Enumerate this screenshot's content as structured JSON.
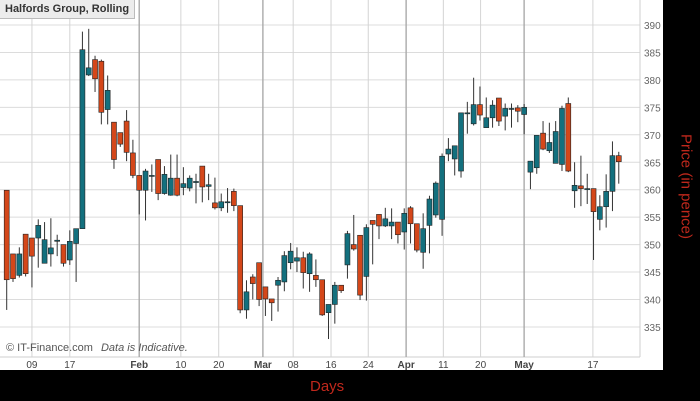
{
  "chart_data": {
    "type": "candlestick",
    "title": "Halfords Group, Rolling",
    "xlabel": "Days",
    "ylabel": "Price (in pence)",
    "watermark": "© IT-Finance.com",
    "note": "Data is Indicative.",
    "ylim": [
      330,
      393
    ],
    "yticks": [
      335,
      340,
      345,
      350,
      355,
      360,
      365,
      370,
      375,
      380,
      385,
      390
    ],
    "grid": true,
    "colors": {
      "up": "#13707e",
      "down": "#d4471a",
      "axis_title": "#c0281c"
    },
    "xticks": [
      {
        "label": "09",
        "index": 5,
        "bold": false
      },
      {
        "label": "17",
        "index": 11,
        "bold": false
      },
      {
        "label": "Feb",
        "index": 22,
        "bold": true
      },
      {
        "label": "10",
        "index": 28.6,
        "bold": false
      },
      {
        "label": "20",
        "index": 34.6,
        "bold": false
      },
      {
        "label": "Mar",
        "index": 41.6,
        "bold": true
      },
      {
        "label": "08",
        "index": 46.4,
        "bold": false
      },
      {
        "label": "16",
        "index": 52.4,
        "bold": false
      },
      {
        "label": "24",
        "index": 58.3,
        "bold": false
      },
      {
        "label": "Apr",
        "index": 64.3,
        "bold": true
      },
      {
        "label": "11",
        "index": 70.2,
        "bold": false
      },
      {
        "label": "20",
        "index": 76.1,
        "bold": false
      },
      {
        "label": "May",
        "index": 83,
        "bold": true
      },
      {
        "label": "17",
        "index": 93.9,
        "bold": false
      }
    ],
    "ohlc": [
      [
        359.9,
        359.9,
        338.1,
        343.6
      ],
      [
        348.3,
        348.3,
        343.2,
        343.8
      ],
      [
        344.4,
        349.5,
        344.0,
        348.3
      ],
      [
        351.9,
        351.9,
        344.2,
        344.7
      ],
      [
        351.2,
        351.2,
        342.2,
        347.9
      ],
      [
        351.2,
        354.6,
        345.8,
        353.5
      ],
      [
        346.6,
        354.1,
        346.6,
        350.9
      ],
      [
        348.3,
        354.8,
        346.0,
        349.4
      ],
      [
        350.6,
        351.8,
        347.9,
        350.8
      ],
      [
        350.0,
        350.0,
        346.0,
        346.6
      ],
      [
        347.2,
        352.6,
        346.3,
        350.6
      ],
      [
        350.2,
        352.9,
        343.2,
        352.9
      ],
      [
        352.9,
        388.8,
        352.9,
        385.5
      ],
      [
        380.9,
        389.3,
        380.7,
        382.2
      ],
      [
        383.7,
        384.4,
        377.8,
        380.2
      ],
      [
        383.4,
        383.7,
        371.9,
        374.1
      ],
      [
        374.6,
        380.8,
        371.9,
        378.1
      ],
      [
        372.3,
        372.3,
        363.8,
        365.5
      ],
      [
        370.4,
        370.4,
        367.8,
        368.3
      ],
      [
        372.5,
        374.5,
        365.2,
        366.8
      ],
      [
        366.7,
        369.1,
        362.1,
        362.6
      ],
      [
        362.6,
        362.6,
        355.5,
        359.9
      ],
      [
        359.9,
        363.8,
        354.4,
        363.4
      ],
      [
        362.5,
        364.6,
        359.6,
        362.6
      ],
      [
        365.5,
        365.5,
        358.1,
        359.3
      ],
      [
        359.3,
        364.3,
        359.1,
        362.8
      ],
      [
        359.0,
        366.4,
        358.9,
        362.1
      ],
      [
        362.1,
        366.4,
        358.8,
        359.0
      ],
      [
        360.4,
        364.1,
        359.0,
        361.1
      ],
      [
        360.3,
        362.6,
        359.7,
        362.1
      ],
      [
        361.3,
        362.9,
        357.5,
        361.5
      ],
      [
        364.3,
        364.3,
        357.7,
        360.5
      ],
      [
        360.6,
        362.9,
        358.1,
        360.9
      ],
      [
        357.6,
        362.2,
        356.4,
        356.7
      ],
      [
        356.7,
        359.3,
        356.1,
        357.8
      ],
      [
        357.8,
        360.3,
        355.8,
        357.8
      ],
      [
        359.7,
        360.2,
        356.1,
        357.1
      ],
      [
        357.1,
        357.1,
        337.5,
        338.1
      ],
      [
        338.1,
        343.5,
        336.5,
        341.4
      ],
      [
        344.1,
        344.6,
        340.0,
        342.9
      ],
      [
        346.7,
        346.7,
        338.8,
        340.0
      ],
      [
        342.3,
        342.3,
        337.0,
        340.1
      ],
      [
        340.1,
        340.1,
        336.1,
        339.4
      ],
      [
        342.6,
        344.1,
        337.8,
        343.5
      ],
      [
        343.2,
        348.8,
        341.5,
        348.0
      ],
      [
        346.7,
        350.3,
        345.5,
        348.8
      ],
      [
        347.0,
        349.5,
        345.0,
        347.6
      ],
      [
        347.6,
        348.7,
        342.0,
        344.9
      ],
      [
        344.7,
        348.6,
        341.4,
        348.3
      ],
      [
        344.4,
        347.3,
        342.3,
        343.6
      ],
      [
        343.6,
        343.6,
        337.0,
        337.2
      ],
      [
        337.6,
        339.1,
        332.8,
        339.1
      ],
      [
        339.1,
        343.2,
        335.6,
        342.6
      ],
      [
        342.6,
        342.6,
        341.2,
        341.6
      ],
      [
        346.3,
        352.5,
        343.8,
        352.0
      ],
      [
        350.0,
        355.4,
        348.9,
        349.2
      ],
      [
        351.7,
        351.7,
        339.9,
        340.8
      ],
      [
        344.2,
        353.7,
        339.8,
        353.1
      ],
      [
        354.4,
        354.4,
        346.4,
        353.7
      ],
      [
        355.5,
        355.5,
        351.0,
        353.4
      ],
      [
        353.4,
        356.7,
        353.2,
        354.7
      ],
      [
        353.4,
        356.6,
        351.0,
        354.1
      ],
      [
        354.1,
        354.1,
        350.2,
        351.8
      ],
      [
        352.3,
        356.6,
        349.1,
        355.7
      ],
      [
        356.7,
        357.0,
        350.2,
        353.8
      ],
      [
        353.8,
        353.8,
        348.6,
        349.0
      ],
      [
        348.6,
        355.7,
        345.6,
        352.9
      ],
      [
        353.5,
        358.9,
        348.4,
        358.3
      ],
      [
        355.4,
        361.5,
        354.9,
        361.2
      ],
      [
        354.6,
        366.6,
        351.6,
        366.1
      ],
      [
        366.5,
        369.4,
        365.2,
        367.4
      ],
      [
        365.6,
        368.0,
        362.6,
        368.0
      ],
      [
        363.4,
        374.0,
        362.2,
        374.0
      ],
      [
        374.0,
        376.0,
        370.2,
        374.0
      ],
      [
        372.0,
        380.4,
        371.7,
        375.5
      ],
      [
        375.5,
        378.8,
        372.6,
        373.6
      ],
      [
        371.3,
        376.8,
        371.3,
        373.1
      ],
      [
        373.1,
        376.3,
        371.3,
        375.4
      ],
      [
        376.7,
        376.7,
        371.6,
        372.5
      ],
      [
        373.4,
        375.7,
        370.8,
        374.8
      ],
      [
        374.8,
        375.7,
        371.3,
        374.8
      ],
      [
        374.9,
        375.4,
        372.3,
        374.3
      ],
      [
        373.7,
        375.6,
        370.1,
        375.0
      ],
      [
        363.2,
        365.2,
        360.1,
        365.2
      ],
      [
        364.0,
        369.9,
        362.9,
        369.9
      ],
      [
        370.3,
        372.5,
        367.2,
        367.4
      ],
      [
        367.1,
        372.2,
        366.7,
        368.6
      ],
      [
        364.8,
        372.5,
        364.8,
        370.6
      ],
      [
        364.6,
        375.3,
        363.4,
        374.8
      ],
      [
        375.7,
        376.8,
        363.2,
        363.4
      ],
      [
        359.8,
        365.0,
        356.7,
        360.8
      ],
      [
        360.7,
        366.2,
        357.0,
        360.2
      ],
      [
        360.2,
        362.9,
        357.4,
        360.2
      ],
      [
        360.2,
        360.2,
        347.2,
        356.0
      ],
      [
        354.6,
        359.0,
        352.6,
        356.9
      ],
      [
        356.9,
        362.8,
        353.1,
        359.7
      ],
      [
        359.7,
        368.8,
        356.1,
        366.2
      ],
      [
        366.2,
        366.9,
        361.1,
        365.1
      ]
    ]
  }
}
